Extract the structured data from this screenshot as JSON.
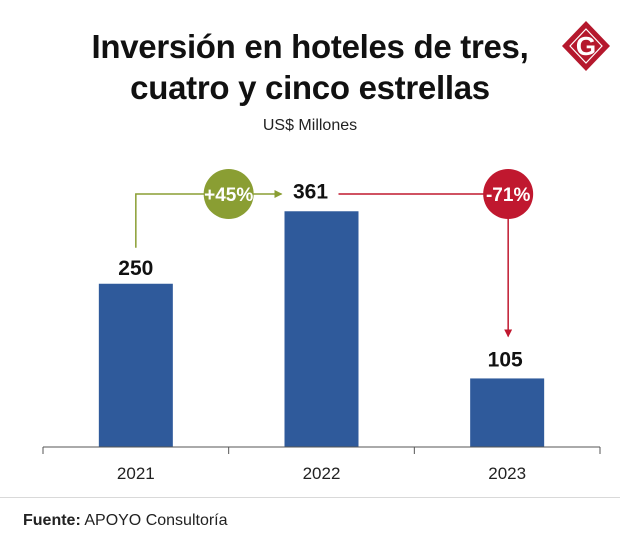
{
  "logo": {
    "letter": "G",
    "color": "#b5182d"
  },
  "chart_data": {
    "type": "bar",
    "title_lines": [
      "Inversión en hoteles de tres,",
      "cuatro y cinco estrellas"
    ],
    "subtitle": "US$ Millones",
    "categories": [
      "2021",
      "2022",
      "2023"
    ],
    "values": [
      250,
      361,
      105
    ],
    "ylim": [
      0,
      450
    ],
    "xlabel": "",
    "ylabel": "",
    "grid": false,
    "bar_color": "#2f5a9b",
    "annotations": [
      {
        "from": "2021",
        "to": "2022",
        "label": "+45%",
        "color": "#8a9e33"
      },
      {
        "from": "2022",
        "to": "2023",
        "label": "-71%",
        "color": "#c0182f"
      }
    ]
  },
  "source": {
    "label": "Fuente:",
    "text": "APOYO Consultoría"
  }
}
